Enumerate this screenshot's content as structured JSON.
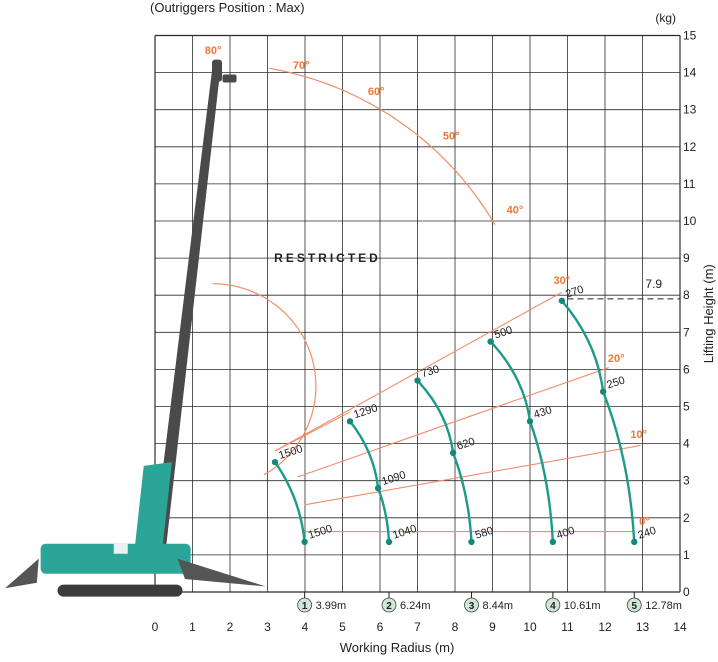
{
  "chart_data": {
    "type": "line",
    "subtitle": "(Outriggers Position : Max)",
    "xlabel": "Working Radius (m)",
    "ylabel": "Lifting Height (m)",
    "unit_label": "(kg)",
    "xlim": [
      0,
      14
    ],
    "ylim": [
      0,
      15
    ],
    "xticks": [
      "0",
      "1",
      "2",
      "3",
      "4",
      "5",
      "6",
      "7",
      "8",
      "9",
      "10",
      "11",
      "12",
      "13",
      "14"
    ],
    "yticks": [
      "0",
      "1",
      "2",
      "3",
      "4",
      "5",
      "6",
      "7",
      "8",
      "9",
      "10",
      "11",
      "12",
      "13",
      "14",
      "15"
    ],
    "grid": true,
    "restricted_label": "RESTRICTED",
    "max_height_label": "7.9",
    "max_height_value": 7.9,
    "boom_angles": [
      {
        "label": "0°",
        "angle": 0
      },
      {
        "label": "10°",
        "angle": 10
      },
      {
        "label": "20°",
        "angle": 20
      },
      {
        "label": "30°",
        "angle": 30
      },
      {
        "label": "40°",
        "angle": 40
      },
      {
        "label": "50°",
        "angle": 50
      },
      {
        "label": "60°",
        "angle": 60
      },
      {
        "label": "70°",
        "angle": 70
      },
      {
        "label": "80°",
        "angle": 80
      }
    ],
    "radius_markers": [
      {
        "number": "1",
        "label": "3.99m",
        "x": 3.99
      },
      {
        "number": "2",
        "label": "6.24m",
        "x": 6.24
      },
      {
        "number": "3",
        "label": "8.44m",
        "x": 8.44
      },
      {
        "number": "4",
        "label": "10.61m",
        "x": 10.61
      },
      {
        "number": "5",
        "label": "12.78m",
        "x": 12.78
      }
    ],
    "series": [
      {
        "label": "1",
        "points": [
          {
            "x": 3.99,
            "y": 1.35,
            "label": "1500"
          },
          {
            "x": 3.2,
            "y": 3.5,
            "label": "1500"
          }
        ]
      },
      {
        "label": "2",
        "points": [
          {
            "x": 6.24,
            "y": 1.35,
            "label": "1040"
          },
          {
            "x": 5.95,
            "y": 2.8,
            "label": "1090"
          },
          {
            "x": 5.2,
            "y": 4.6,
            "label": "1290"
          }
        ]
      },
      {
        "label": "3",
        "points": [
          {
            "x": 8.44,
            "y": 1.35,
            "label": "580"
          },
          {
            "x": 7.95,
            "y": 3.75,
            "label": "620"
          },
          {
            "x": 7.0,
            "y": 5.7,
            "label": "730"
          }
        ]
      },
      {
        "label": "4",
        "points": [
          {
            "x": 10.61,
            "y": 1.35,
            "label": "400"
          },
          {
            "x": 10.0,
            "y": 4.6,
            "label": "430"
          },
          {
            "x": 8.95,
            "y": 6.75,
            "label": "500"
          }
        ]
      },
      {
        "label": "5",
        "points": [
          {
            "x": 12.78,
            "y": 1.35,
            "label": "240"
          },
          {
            "x": 11.95,
            "y": 5.4,
            "label": "250"
          },
          {
            "x": 10.85,
            "y": 7.85,
            "label": "270"
          }
        ]
      }
    ],
    "colors": {
      "grid": "#2b2b2b",
      "envelope": "#f08d6a",
      "angle_label": "#f07833",
      "curve": "#1d9b8a",
      "point": "#138a78",
      "crane_boom": "#4a4a4a",
      "crane_body": "#2aa597",
      "marker_fill": "#cfe6d9"
    }
  }
}
